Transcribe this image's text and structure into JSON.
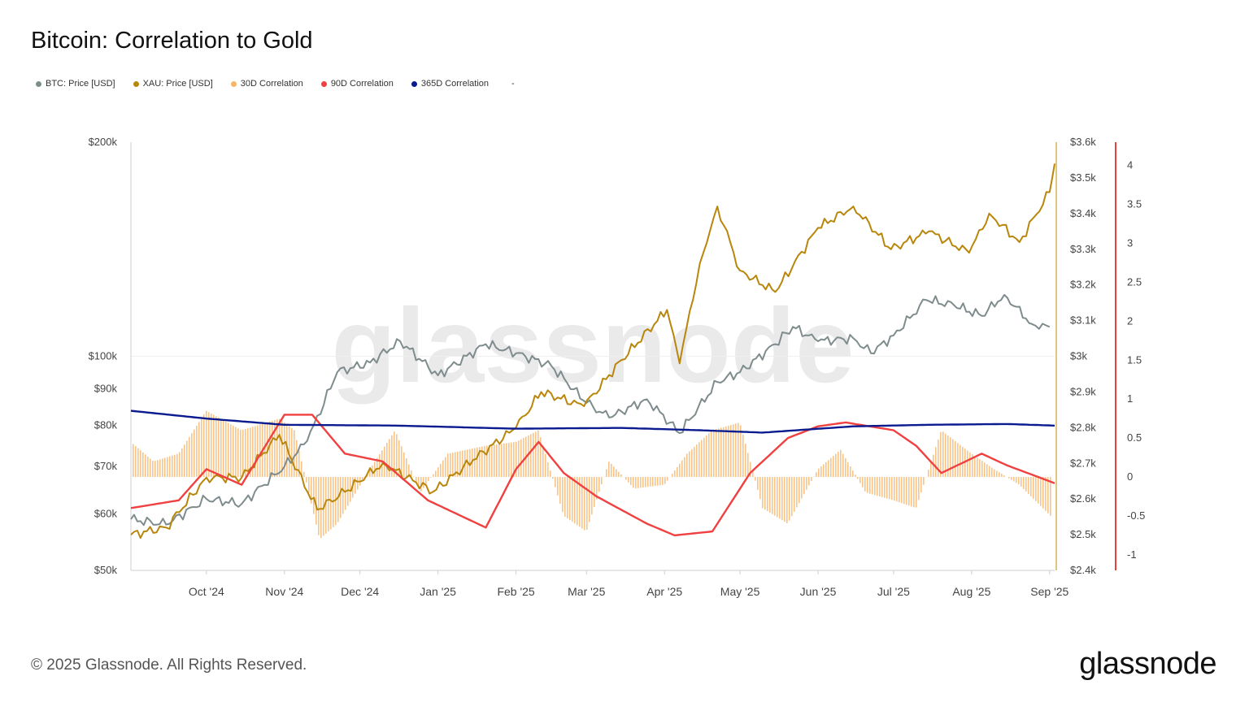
{
  "title": "Bitcoin: Correlation to Gold",
  "legend": [
    {
      "label": "BTC: Price [USD]",
      "color": "#7f8c8d"
    },
    {
      "label": "XAU: Price [USD]",
      "color": "#b8860b"
    },
    {
      "label": "30D Correlation",
      "color": "#f5b66b"
    },
    {
      "label": "90D Correlation",
      "color": "#f04040"
    },
    {
      "label": "365D Correlation",
      "color": "#0a1a8f"
    }
  ],
  "legend_trailing": "-",
  "footer": "© 2025 Glassnode. All Rights Reserved.",
  "brand": "glassnode",
  "watermark": "glassnode",
  "chart_data": {
    "type": "line",
    "title": "Bitcoin: Correlation to Gold",
    "x_ticks": [
      "Oct '24",
      "Nov '24",
      "Dec '24",
      "Jan '25",
      "Feb '25",
      "Mar '25",
      "Apr '25",
      "May '25",
      "Jun '25",
      "Jul '25",
      "Aug '25",
      "Sep '25"
    ],
    "axes": {
      "btc": {
        "scale": "log",
        "range": [
          50000,
          200000
        ],
        "ticks": [
          50000,
          60000,
          70000,
          80000,
          90000,
          100000,
          200000
        ],
        "tick_labels": [
          "$50k",
          "$60k",
          "$70k",
          "$80k",
          "$90k",
          "$100k",
          "$200k"
        ]
      },
      "xau": {
        "scale": "linear",
        "range": [
          2400,
          3600
        ],
        "ticks": [
          2400,
          2500,
          2600,
          2700,
          2800,
          2900,
          3000,
          3100,
          3200,
          3300,
          3400,
          3500,
          3600
        ],
        "tick_labels": [
          "$2.4k",
          "$2.5k",
          "$2.6k",
          "$2.7k",
          "$2.8k",
          "$2.9k",
          "$3k",
          "$3.1k",
          "$3.2k",
          "$3.3k",
          "$3.4k",
          "$3.5k",
          "$3.6k"
        ]
      },
      "corr": {
        "scale": "linear",
        "range": [
          -1.2,
          4.3
        ],
        "ticks": [
          -1,
          -0.5,
          0,
          0.5,
          1,
          1.5,
          2,
          2.5,
          3,
          3.5,
          4
        ],
        "tick_labels": [
          "-1",
          "-0.5",
          "0",
          "0.5",
          "1",
          "1.5",
          "2",
          "2.5",
          "3",
          "3.5",
          "4"
        ]
      }
    },
    "series": [
      {
        "name": "BTC: Price [USD]",
        "axis": "btc",
        "color": "#7f8c8d",
        "x": [
          "2024-09-01",
          "2024-09-15",
          "2024-10-01",
          "2024-10-15",
          "2024-11-01",
          "2024-11-10",
          "2024-11-22",
          "2024-12-05",
          "2024-12-17",
          "2025-01-01",
          "2025-01-20",
          "2025-02-01",
          "2025-02-15",
          "2025-03-01",
          "2025-03-10",
          "2025-03-25",
          "2025-04-07",
          "2025-04-22",
          "2025-05-01",
          "2025-05-15",
          "2025-05-22",
          "2025-06-01",
          "2025-06-15",
          "2025-06-22",
          "2025-07-01",
          "2025-07-14",
          "2025-07-25",
          "2025-08-05",
          "2025-08-14",
          "2025-08-25",
          "2025-09-01"
        ],
        "values": [
          59000,
          58000,
          63000,
          62000,
          70000,
          76000,
          95000,
          98000,
          105000,
          94000,
          104000,
          101000,
          97000,
          86000,
          82000,
          87000,
          78000,
          92000,
          95000,
          104000,
          110000,
          105000,
          106000,
          101000,
          107000,
          120000,
          118000,
          114000,
          122000,
          111000,
          110000
        ]
      },
      {
        "name": "XAU: Price [USD]",
        "axis": "xau",
        "color": "#b8860b",
        "x": [
          "2024-09-01",
          "2024-09-15",
          "2024-10-01",
          "2024-10-15",
          "2024-10-30",
          "2024-11-14",
          "2024-11-25",
          "2024-12-10",
          "2024-12-30",
          "2025-01-15",
          "2025-02-01",
          "2025-02-11",
          "2025-02-28",
          "2025-03-15",
          "2025-04-02",
          "2025-04-07",
          "2025-04-15",
          "2025-04-22",
          "2025-05-01",
          "2025-05-15",
          "2025-06-01",
          "2025-06-15",
          "2025-06-30",
          "2025-07-15",
          "2025-07-31",
          "2025-08-08",
          "2025-08-20",
          "2025-09-01",
          "2025-09-03"
        ],
        "values": [
          2500,
          2520,
          2660,
          2660,
          2780,
          2570,
          2620,
          2700,
          2620,
          2710,
          2800,
          2900,
          2860,
          2990,
          3130,
          2980,
          3260,
          3420,
          3240,
          3180,
          3360,
          3420,
          3300,
          3350,
          3290,
          3400,
          3320,
          3460,
          3540
        ]
      },
      {
        "name": "90D Correlation",
        "axis": "corr",
        "color": "#f04040",
        "x": [
          "2024-09-01",
          "2024-09-20",
          "2024-10-01",
          "2024-10-15",
          "2024-11-01",
          "2024-11-12",
          "2024-11-25",
          "2024-12-10",
          "2024-12-28",
          "2025-01-20",
          "2025-02-01",
          "2025-02-10",
          "2025-02-20",
          "2025-03-05",
          "2025-03-25",
          "2025-04-05",
          "2025-04-20",
          "2025-05-05",
          "2025-05-20",
          "2025-06-01",
          "2025-06-12",
          "2025-07-01",
          "2025-07-10",
          "2025-07-20",
          "2025-08-05",
          "2025-08-15",
          "2025-09-03"
        ],
        "values": [
          -0.4,
          -0.3,
          0.1,
          -0.1,
          0.8,
          0.8,
          0.3,
          0.2,
          -0.3,
          -0.65,
          0.1,
          0.45,
          0.05,
          -0.25,
          -0.6,
          -0.75,
          -0.7,
          0.05,
          0.5,
          0.65,
          0.7,
          0.6,
          0.4,
          0.05,
          0.3,
          0.15,
          -0.08
        ]
      },
      {
        "name": "365D Correlation",
        "axis": "corr",
        "color": "#0a1a8f",
        "x": [
          "2024-09-01",
          "2024-10-01",
          "2024-11-01",
          "2024-12-15",
          "2025-02-01",
          "2025-03-15",
          "2025-04-15",
          "2025-05-10",
          "2025-06-15",
          "2025-07-15",
          "2025-08-15",
          "2025-09-03"
        ],
        "values": [
          0.85,
          0.75,
          0.67,
          0.66,
          0.62,
          0.63,
          0.6,
          0.57,
          0.65,
          0.67,
          0.68,
          0.66
        ]
      }
    ],
    "bars": {
      "name": "30D Correlation",
      "axis": "corr",
      "color": "#f5b66b",
      "x": [
        "2024-09-01",
        "2024-09-10",
        "2024-09-20",
        "2024-10-01",
        "2024-10-15",
        "2024-10-30",
        "2024-11-05",
        "2024-11-15",
        "2024-11-22",
        "2024-12-05",
        "2024-12-15",
        "2024-12-25",
        "2025-01-05",
        "2025-01-20",
        "2025-02-01",
        "2025-02-10",
        "2025-02-20",
        "2025-03-01",
        "2025-03-10",
        "2025-03-20",
        "2025-04-01",
        "2025-04-10",
        "2025-04-20",
        "2025-05-01",
        "2025-05-10",
        "2025-05-20",
        "2025-06-01",
        "2025-06-10",
        "2025-06-20",
        "2025-07-01",
        "2025-07-10",
        "2025-07-20",
        "2025-08-01",
        "2025-08-10",
        "2025-08-20",
        "2025-09-03"
      ],
      "values": [
        0.45,
        0.2,
        0.3,
        0.85,
        0.6,
        0.75,
        0.6,
        -0.8,
        -0.6,
        0.1,
        0.6,
        -0.2,
        0.3,
        0.4,
        0.45,
        0.6,
        -0.5,
        -0.7,
        0.2,
        -0.15,
        -0.1,
        0.3,
        0.6,
        0.7,
        -0.4,
        -0.6,
        0.1,
        0.35,
        -0.2,
        -0.3,
        -0.4,
        0.6,
        0.3,
        0.1,
        -0.1,
        -0.55
      ]
    }
  }
}
